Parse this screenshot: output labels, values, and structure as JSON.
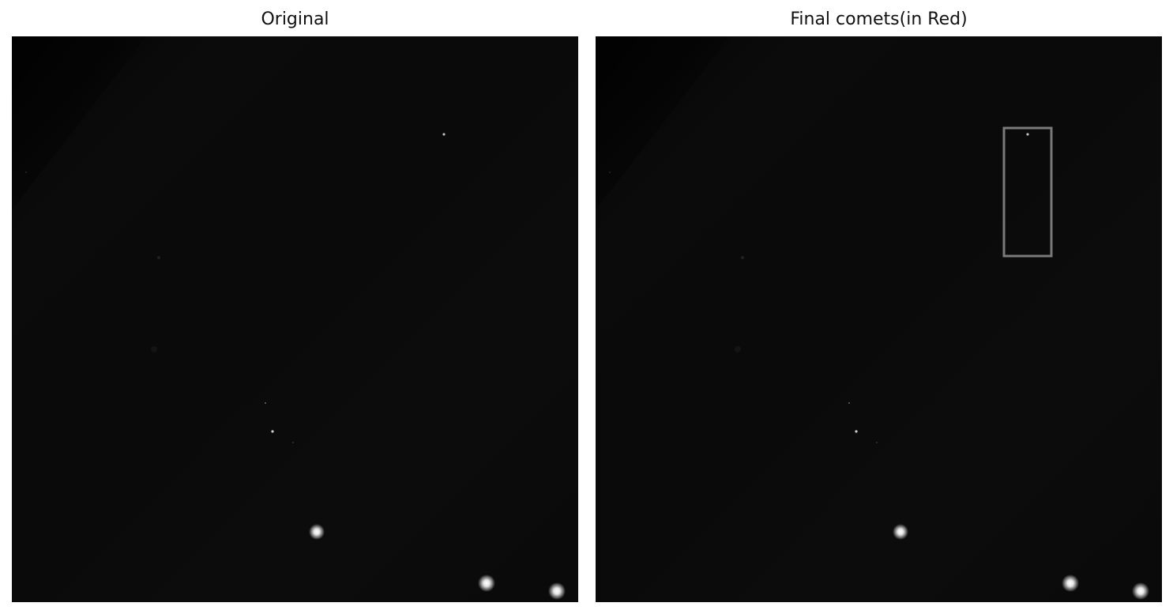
{
  "panels": [
    {
      "title": "Original",
      "has_detection_box": false
    },
    {
      "title": "Final comets(in Red)",
      "has_detection_box": true
    }
  ],
  "colors": {
    "background": "#ffffff",
    "sky": "#0a0a0a",
    "star": "#ffffff",
    "detection_box": "#7a7a7a"
  },
  "icons": [
    "star-glow"
  ]
}
